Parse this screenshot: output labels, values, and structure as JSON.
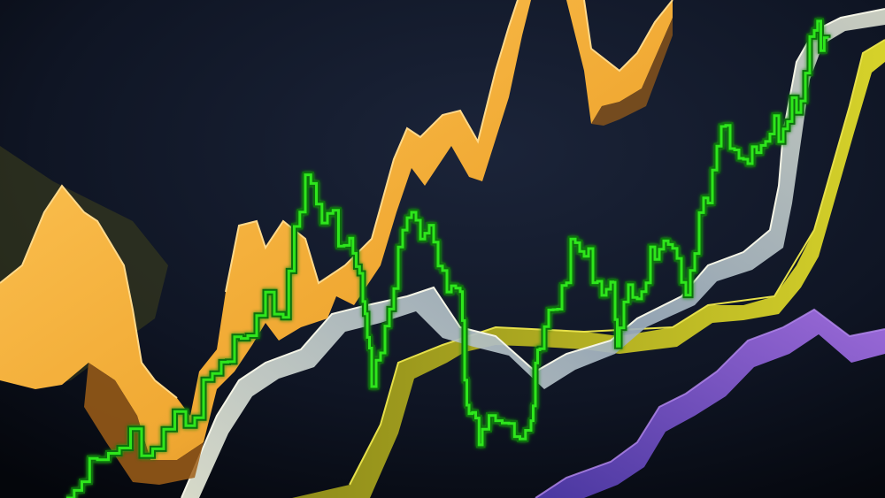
{
  "scene": {
    "background_top": "#131a2b",
    "background_bottom": "#05070d",
    "description_colors": {
      "orange": "#f0a832",
      "orange_dark": "#a8661a",
      "green": "#2ee61f",
      "green_dark": "#0f6f10",
      "yellow": "#c4c224",
      "yellow_dark": "#5f5e12",
      "silver": "#c8d0c8",
      "silver_dark": "#6f7a86",
      "purple": "#7a55c9",
      "purple_dark": "#3d2a7a"
    }
  }
}
